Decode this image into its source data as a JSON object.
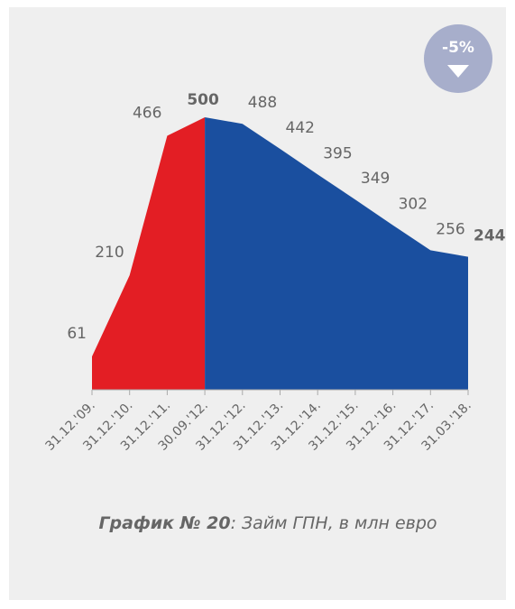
{
  "chart_data": {
    "type": "area",
    "categories": [
      "31.12.'09.",
      "31.12.'10.",
      "31.12.'11.",
      "30.09.'12.",
      "31.12.'12.",
      "31.12.'13.",
      "31.12.'14.",
      "31.12.'15.",
      "31.12.'16.",
      "31.12.'17.",
      "31.03.'18."
    ],
    "series": [
      {
        "color": "#e31e24",
        "values": [
          61,
          210,
          466,
          500,
          null,
          null,
          null,
          null,
          null,
          null,
          null
        ]
      },
      {
        "color": "#1a4f9f",
        "values": [
          null,
          null,
          null,
          500,
          488,
          442,
          395,
          349,
          302,
          256,
          244
        ]
      }
    ],
    "bold_points": [
      3,
      10
    ],
    "ylim": [
      0,
      500
    ],
    "badge": "-5%",
    "caption": [
      "График №  20",
      ": Займ ГПН, в млн евро"
    ]
  }
}
